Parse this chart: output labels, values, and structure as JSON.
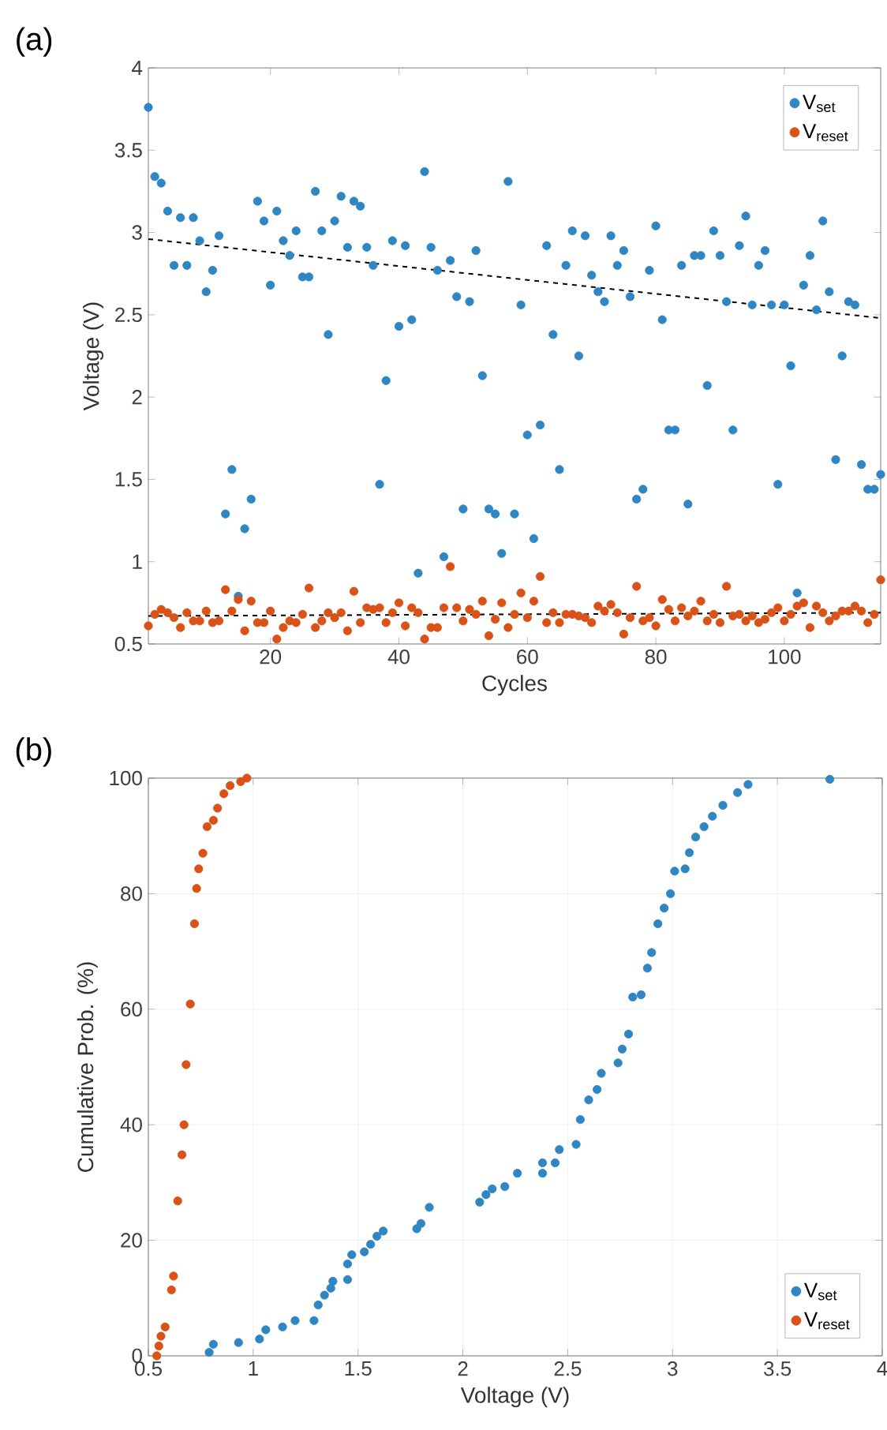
{
  "chart_data": [
    {
      "type": "scatter",
      "annotations": [
        "(a)"
      ],
      "xlabel": "Cycles",
      "ylabel": "Voltage (V)",
      "xlim": [
        1,
        115
      ],
      "xticks": [
        20,
        40,
        60,
        80,
        100
      ],
      "ylim": [
        0.5,
        4
      ],
      "yticks": [
        0.5,
        1,
        1.5,
        2,
        2.5,
        3,
        3.5,
        4
      ],
      "grid": false,
      "legend": "top right",
      "marker": "circle",
      "x": [
        1,
        2,
        3,
        4,
        5,
        6,
        7,
        8,
        9,
        10,
        11,
        12,
        13,
        14,
        15,
        16,
        17,
        18,
        19,
        20,
        21,
        22,
        23,
        24,
        25,
        26,
        27,
        28,
        29,
        30,
        31,
        32,
        33,
        34,
        35,
        36,
        37,
        38,
        39,
        40,
        41,
        42,
        43,
        44,
        45,
        46,
        47,
        48,
        49,
        50,
        51,
        52,
        53,
        54,
        55,
        56,
        57,
        58,
        59,
        60,
        61,
        62,
        63,
        64,
        65,
        66,
        67,
        68,
        69,
        70,
        71,
        72,
        73,
        74,
        75,
        76,
        77,
        78,
        79,
        80,
        81,
        82,
        83,
        84,
        85,
        86,
        87,
        88,
        89,
        90,
        91,
        92,
        93,
        94,
        95,
        96,
        97,
        98,
        99,
        100,
        101,
        102,
        103,
        104,
        105,
        106,
        107,
        108,
        109,
        110,
        111,
        112,
        113,
        114,
        115
      ],
      "series": [
        {
          "name": "V$_{set}$",
          "color": "#2f86c3",
          "values": [
            3.76,
            3.34,
            3.3,
            3.13,
            2.8,
            3.09,
            2.8,
            3.09,
            2.95,
            2.64,
            2.77,
            2.98,
            1.29,
            1.56,
            0.79,
            1.2,
            1.38,
            3.19,
            3.07,
            2.68,
            3.13,
            2.95,
            2.86,
            3.01,
            2.73,
            2.73,
            3.25,
            3.01,
            2.38,
            3.07,
            3.22,
            2.91,
            3.19,
            3.16,
            2.91,
            2.8,
            1.47,
            2.1,
            2.95,
            2.43,
            2.92,
            2.47,
            0.93,
            3.37,
            2.91,
            2.77,
            1.03,
            2.83,
            2.61,
            1.32,
            2.58,
            2.89,
            2.13,
            1.32,
            1.29,
            1.05,
            3.31,
            1.29,
            2.56,
            1.77,
            1.14,
            1.83,
            2.92,
            2.38,
            1.56,
            2.8,
            3.01,
            2.25,
            2.98,
            2.74,
            2.64,
            2.58,
            2.98,
            2.8,
            2.89,
            2.61,
            1.38,
            1.44,
            2.77,
            3.04,
            2.47,
            1.8,
            1.8,
            2.8,
            1.35,
            2.86,
            2.86,
            2.07,
            3.01,
            2.86,
            2.58,
            1.8,
            2.92,
            3.1,
            2.56,
            2.8,
            2.89,
            2.56,
            1.47,
            2.56,
            2.19,
            0.81,
            2.68,
            2.86,
            2.53,
            3.07,
            2.64,
            1.62,
            2.25,
            2.58,
            2.56,
            1.59,
            1.44,
            1.44,
            1.53
          ]
        },
        {
          "name": "V$_{reset}$",
          "color": "#d95319",
          "values": [
            0.61,
            0.68,
            0.71,
            0.69,
            0.66,
            0.6,
            0.69,
            0.64,
            0.64,
            0.7,
            0.63,
            0.64,
            0.83,
            0.7,
            0.77,
            0.58,
            0.76,
            0.63,
            0.63,
            0.7,
            0.53,
            0.6,
            0.64,
            0.63,
            0.68,
            0.84,
            0.6,
            0.64,
            0.69,
            0.66,
            0.69,
            0.58,
            0.82,
            0.63,
            0.72,
            0.71,
            0.72,
            0.63,
            0.69,
            0.75,
            0.61,
            0.72,
            0.69,
            0.53,
            0.6,
            0.6,
            0.72,
            0.97,
            0.72,
            0.64,
            0.71,
            0.68,
            0.76,
            0.55,
            0.65,
            0.75,
            0.6,
            0.68,
            0.81,
            0.66,
            0.76,
            0.91,
            0.63,
            0.69,
            0.63,
            0.68,
            0.68,
            0.67,
            0.66,
            0.63,
            0.73,
            0.7,
            0.74,
            0.69,
            0.56,
            0.66,
            0.85,
            0.64,
            0.66,
            0.61,
            0.77,
            0.71,
            0.64,
            0.72,
            0.67,
            0.7,
            0.76,
            0.64,
            0.68,
            0.63,
            0.85,
            0.67,
            0.68,
            0.64,
            0.67,
            0.63,
            0.65,
            0.69,
            0.72,
            0.64,
            0.68,
            0.73,
            0.75,
            0.6,
            0.73,
            0.69,
            0.64,
            0.67,
            0.7,
            0.7,
            0.73,
            0.7,
            0.63,
            0.68,
            0.89
          ]
        },
        {
          "type": "line",
          "color": "#000000",
          "line_style": "dashed",
          "marker": "none",
          "x": [
            1,
            115
          ],
          "values": [
            2.96,
            2.48
          ]
        },
        {
          "type": "line",
          "color": "#000000",
          "line_style": "dashed",
          "marker": "none",
          "x": [
            1,
            115
          ],
          "values": [
            0.67,
            0.69
          ]
        }
      ]
    },
    {
      "type": "scatter",
      "annotations": [
        "(b)"
      ],
      "xlabel": "Voltage (V)",
      "ylabel": "Cumulative Prob. (%)",
      "xlim": [
        0.5,
        4
      ],
      "xticks": [
        0.5,
        1,
        1.5,
        2,
        2.5,
        3,
        3.5,
        4
      ],
      "ylim": [
        0,
        100
      ],
      "yticks": [
        0,
        20,
        40,
        60,
        80,
        100
      ],
      "grid": true,
      "legend": "bottom right",
      "marker": "circle",
      "series": [
        {
          "name": "V$_{set}$",
          "color": "#2f86c3",
          "x": [
            0.79,
            0.81,
            0.93,
            1.03,
            1.06,
            1.14,
            1.2,
            1.29,
            1.31,
            1.34,
            1.37,
            1.38,
            1.45,
            1.45,
            1.47,
            1.53,
            1.56,
            1.59,
            1.62,
            1.78,
            1.8,
            1.84,
            2.08,
            2.11,
            2.14,
            2.2,
            2.26,
            2.38,
            2.38,
            2.44,
            2.46,
            2.54,
            2.56,
            2.6,
            2.64,
            2.66,
            2.74,
            2.76,
            2.79,
            2.81,
            2.85,
            2.88,
            2.9,
            2.93,
            2.96,
            2.99,
            3.01,
            3.06,
            3.08,
            3.11,
            3.15,
            3.19,
            3.24,
            3.31,
            3.36,
            3.75
          ],
          "values": [
            0.6,
            2,
            2.3,
            2.9,
            4.5,
            5,
            6.1,
            6.1,
            8.8,
            10.5,
            11.7,
            12.9,
            13.2,
            15.9,
            17.5,
            18,
            19.3,
            20.7,
            21.6,
            22,
            22.9,
            25.7,
            26.6,
            27.9,
            28.9,
            29.3,
            31.6,
            31.6,
            33.4,
            33.4,
            35.7,
            36.6,
            40.9,
            44.3,
            46.1,
            48.9,
            50.7,
            53.1,
            55.7,
            62.1,
            62.5,
            67.1,
            69.8,
            74.8,
            77.5,
            80,
            83.9,
            84.3,
            87.1,
            89.8,
            91.6,
            93.4,
            95.3,
            97.5,
            98.9,
            99.8
          ]
        },
        {
          "name": "V$_{reset}$",
          "color": "#d95319",
          "x": [
            0.54,
            0.55,
            0.56,
            0.58,
            0.61,
            0.62,
            0.64,
            0.66,
            0.67,
            0.68,
            0.7,
            0.72,
            0.73,
            0.74,
            0.76,
            0.78,
            0.81,
            0.83,
            0.86,
            0.89,
            0.94,
            0.97
          ],
          "values": [
            0,
            1.7,
            3.4,
            5,
            11.4,
            13.8,
            26.8,
            34.8,
            40,
            50.4,
            60.9,
            74.8,
            80.9,
            84.3,
            87,
            91.6,
            92.7,
            94.8,
            97.3,
            98.7,
            99.4,
            100
          ]
        }
      ]
    }
  ]
}
